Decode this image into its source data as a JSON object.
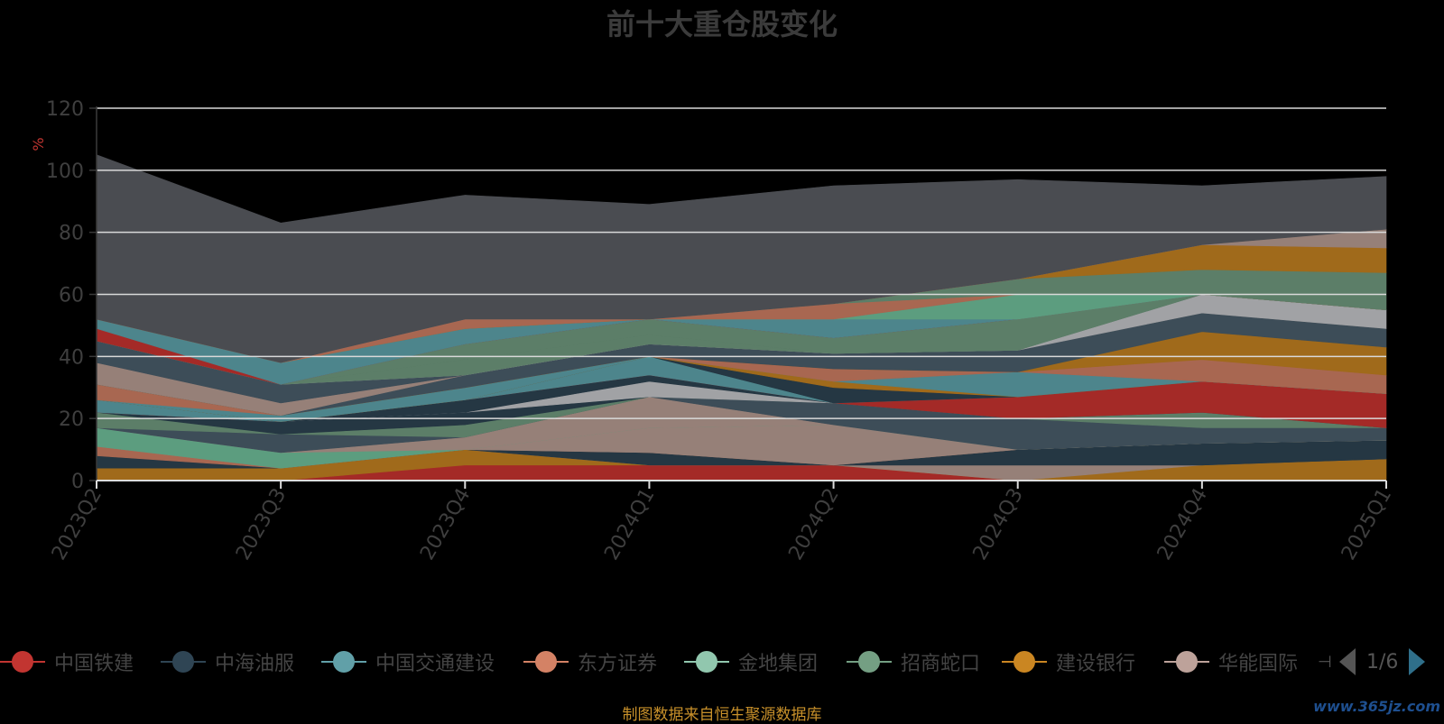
{
  "source_note": "制图数据来自恒生聚源数据库",
  "watermark": "www.365jz.com",
  "legend_page": "1/6",
  "chart_data": {
    "type": "area",
    "title": "前十大重仓股变化",
    "ylabel": "%",
    "ylim": [
      0,
      120
    ],
    "yticks": [
      0,
      20,
      40,
      60,
      80,
      100,
      120
    ],
    "grid": true,
    "legend_position": "bottom",
    "categories": [
      "2023Q2",
      "2023Q3",
      "2023Q4",
      "2024Q1",
      "2024Q2",
      "2024Q3",
      "2024Q4",
      "2025Q1"
    ],
    "legend": [
      {
        "name": "中国铁建",
        "color": "#c23531"
      },
      {
        "name": "中海油服",
        "color": "#2f4554"
      },
      {
        "name": "中国交通建设",
        "color": "#61a0a8"
      },
      {
        "name": "东方证券",
        "color": "#d48265"
      },
      {
        "name": "金地集团",
        "color": "#91c7ae"
      },
      {
        "name": "招商蛇口",
        "color": "#749f83"
      },
      {
        "name": "建设银行",
        "color": "#ca8622"
      },
      {
        "name": "华能国际",
        "color": "#bda29a"
      }
    ],
    "series": [
      {
        "values": [
          0,
          0,
          5,
          5,
          5,
          0,
          0,
          0
        ],
        "color": "#a42a27"
      },
      {
        "values": [
          4,
          4,
          5,
          0,
          0,
          0,
          5,
          7
        ],
        "color": "#a06a1b"
      },
      {
        "values": [
          0,
          0,
          0,
          0,
          0,
          5,
          0,
          0
        ],
        "color": "#968078"
      },
      {
        "values": [
          4,
          0,
          0,
          4,
          0,
          0,
          0,
          0
        ],
        "color": "#253743"
      },
      {
        "values": [
          0,
          0,
          0,
          0,
          0,
          5,
          7,
          6
        ],
        "color": "#253743"
      },
      {
        "values": [
          3,
          0,
          0,
          0,
          0,
          0,
          0,
          0
        ],
        "color": "#a86751"
      },
      {
        "values": [
          0,
          0,
          0,
          8,
          13,
          0,
          0,
          0
        ],
        "color": "#968078"
      },
      {
        "values": [
          6,
          5,
          0,
          0,
          0,
          0,
          0,
          0
        ],
        "color": "#5c9d7f"
      },
      {
        "values": [
          0,
          0,
          4,
          10,
          0,
          0,
          0,
          0
        ],
        "color": "#968078"
      },
      {
        "values": [
          0,
          6,
          0,
          0,
          7,
          10,
          5,
          4
        ],
        "color": "#3d4d58"
      },
      {
        "values": [
          5,
          0,
          4,
          0,
          0,
          0,
          5,
          0
        ],
        "color": "#5c7e68"
      },
      {
        "values": [
          0,
          4,
          4,
          0,
          0,
          0,
          0,
          0
        ],
        "color": "#253743"
      },
      {
        "values": [
          0,
          0,
          0,
          5,
          0,
          0,
          0,
          0
        ],
        "color": "#a1a2a5"
      },
      {
        "values": [
          0,
          0,
          4,
          2,
          0,
          0,
          0,
          0
        ],
        "color": "#253743"
      },
      {
        "values": [
          0,
          0,
          0,
          0,
          0,
          7,
          10,
          11
        ],
        "color": "#a42a27"
      },
      {
        "values": [
          4,
          0,
          0,
          6,
          0,
          0,
          0,
          0
        ],
        "color": "#4d858c"
      },
      {
        "values": [
          0,
          0,
          0,
          0,
          5,
          0,
          0,
          0
        ],
        "color": "#253743"
      },
      {
        "values": [
          0,
          0,
          0,
          0,
          2,
          0,
          0,
          0
        ],
        "color": "#a06a1b"
      },
      {
        "values": [
          0,
          2,
          4,
          0,
          0,
          8,
          0,
          0
        ],
        "color": "#4d858c"
      },
      {
        "values": [
          5,
          0,
          0,
          0,
          4,
          0,
          7,
          6
        ],
        "color": "#a86751"
      },
      {
        "values": [
          0,
          0,
          0,
          0,
          0,
          0,
          9,
          9
        ],
        "color": "#a06a1b"
      },
      {
        "values": [
          0,
          0,
          4,
          4,
          5,
          7,
          6,
          6
        ],
        "color": "#3d4d58"
      },
      {
        "values": [
          7,
          4,
          0,
          0,
          0,
          0,
          0,
          0
        ],
        "color": "#968078"
      },
      {
        "values": [
          7,
          6,
          0,
          0,
          0,
          0,
          0,
          0
        ],
        "color": "#3d4d58"
      },
      {
        "values": [
          0,
          0,
          0,
          0,
          0,
          0,
          6,
          6
        ],
        "color": "#a1a2a5"
      },
      {
        "values": [
          0,
          0,
          5,
          3,
          0,
          0,
          0,
          0
        ],
        "color": "#5c7e68"
      },
      {
        "values": [
          0,
          0,
          5,
          5,
          5,
          10,
          0,
          0
        ],
        "color": "#5c7e68"
      },
      {
        "values": [
          4,
          0,
          0,
          0,
          0,
          0,
          0,
          0
        ],
        "color": "#a42a27"
      },
      {
        "values": [
          3,
          7,
          5,
          0,
          6,
          0,
          0,
          0
        ],
        "color": "#4d858c"
      },
      {
        "values": [
          0,
          0,
          0,
          0,
          0,
          8,
          0,
          0
        ],
        "color": "#5c9d7f"
      },
      {
        "values": [
          0,
          0,
          0,
          0,
          5,
          0,
          0,
          0
        ],
        "color": "#a86751"
      },
      {
        "values": [
          0,
          0,
          0,
          0,
          0,
          5,
          8,
          12
        ],
        "color": "#5c7e68"
      },
      {
        "values": [
          0,
          0,
          0,
          0,
          0,
          0,
          8,
          8
        ],
        "color": "#a06a1b"
      },
      {
        "values": [
          0,
          0,
          3,
          0,
          0,
          0,
          0,
          0
        ],
        "color": "#a86751"
      },
      {
        "values": [
          0,
          0,
          0,
          0,
          0,
          0,
          0,
          6
        ],
        "color": "#968078"
      },
      {
        "values": [
          53,
          45,
          40,
          37,
          38,
          32,
          19,
          17
        ],
        "color": "#4a4c51"
      }
    ]
  }
}
